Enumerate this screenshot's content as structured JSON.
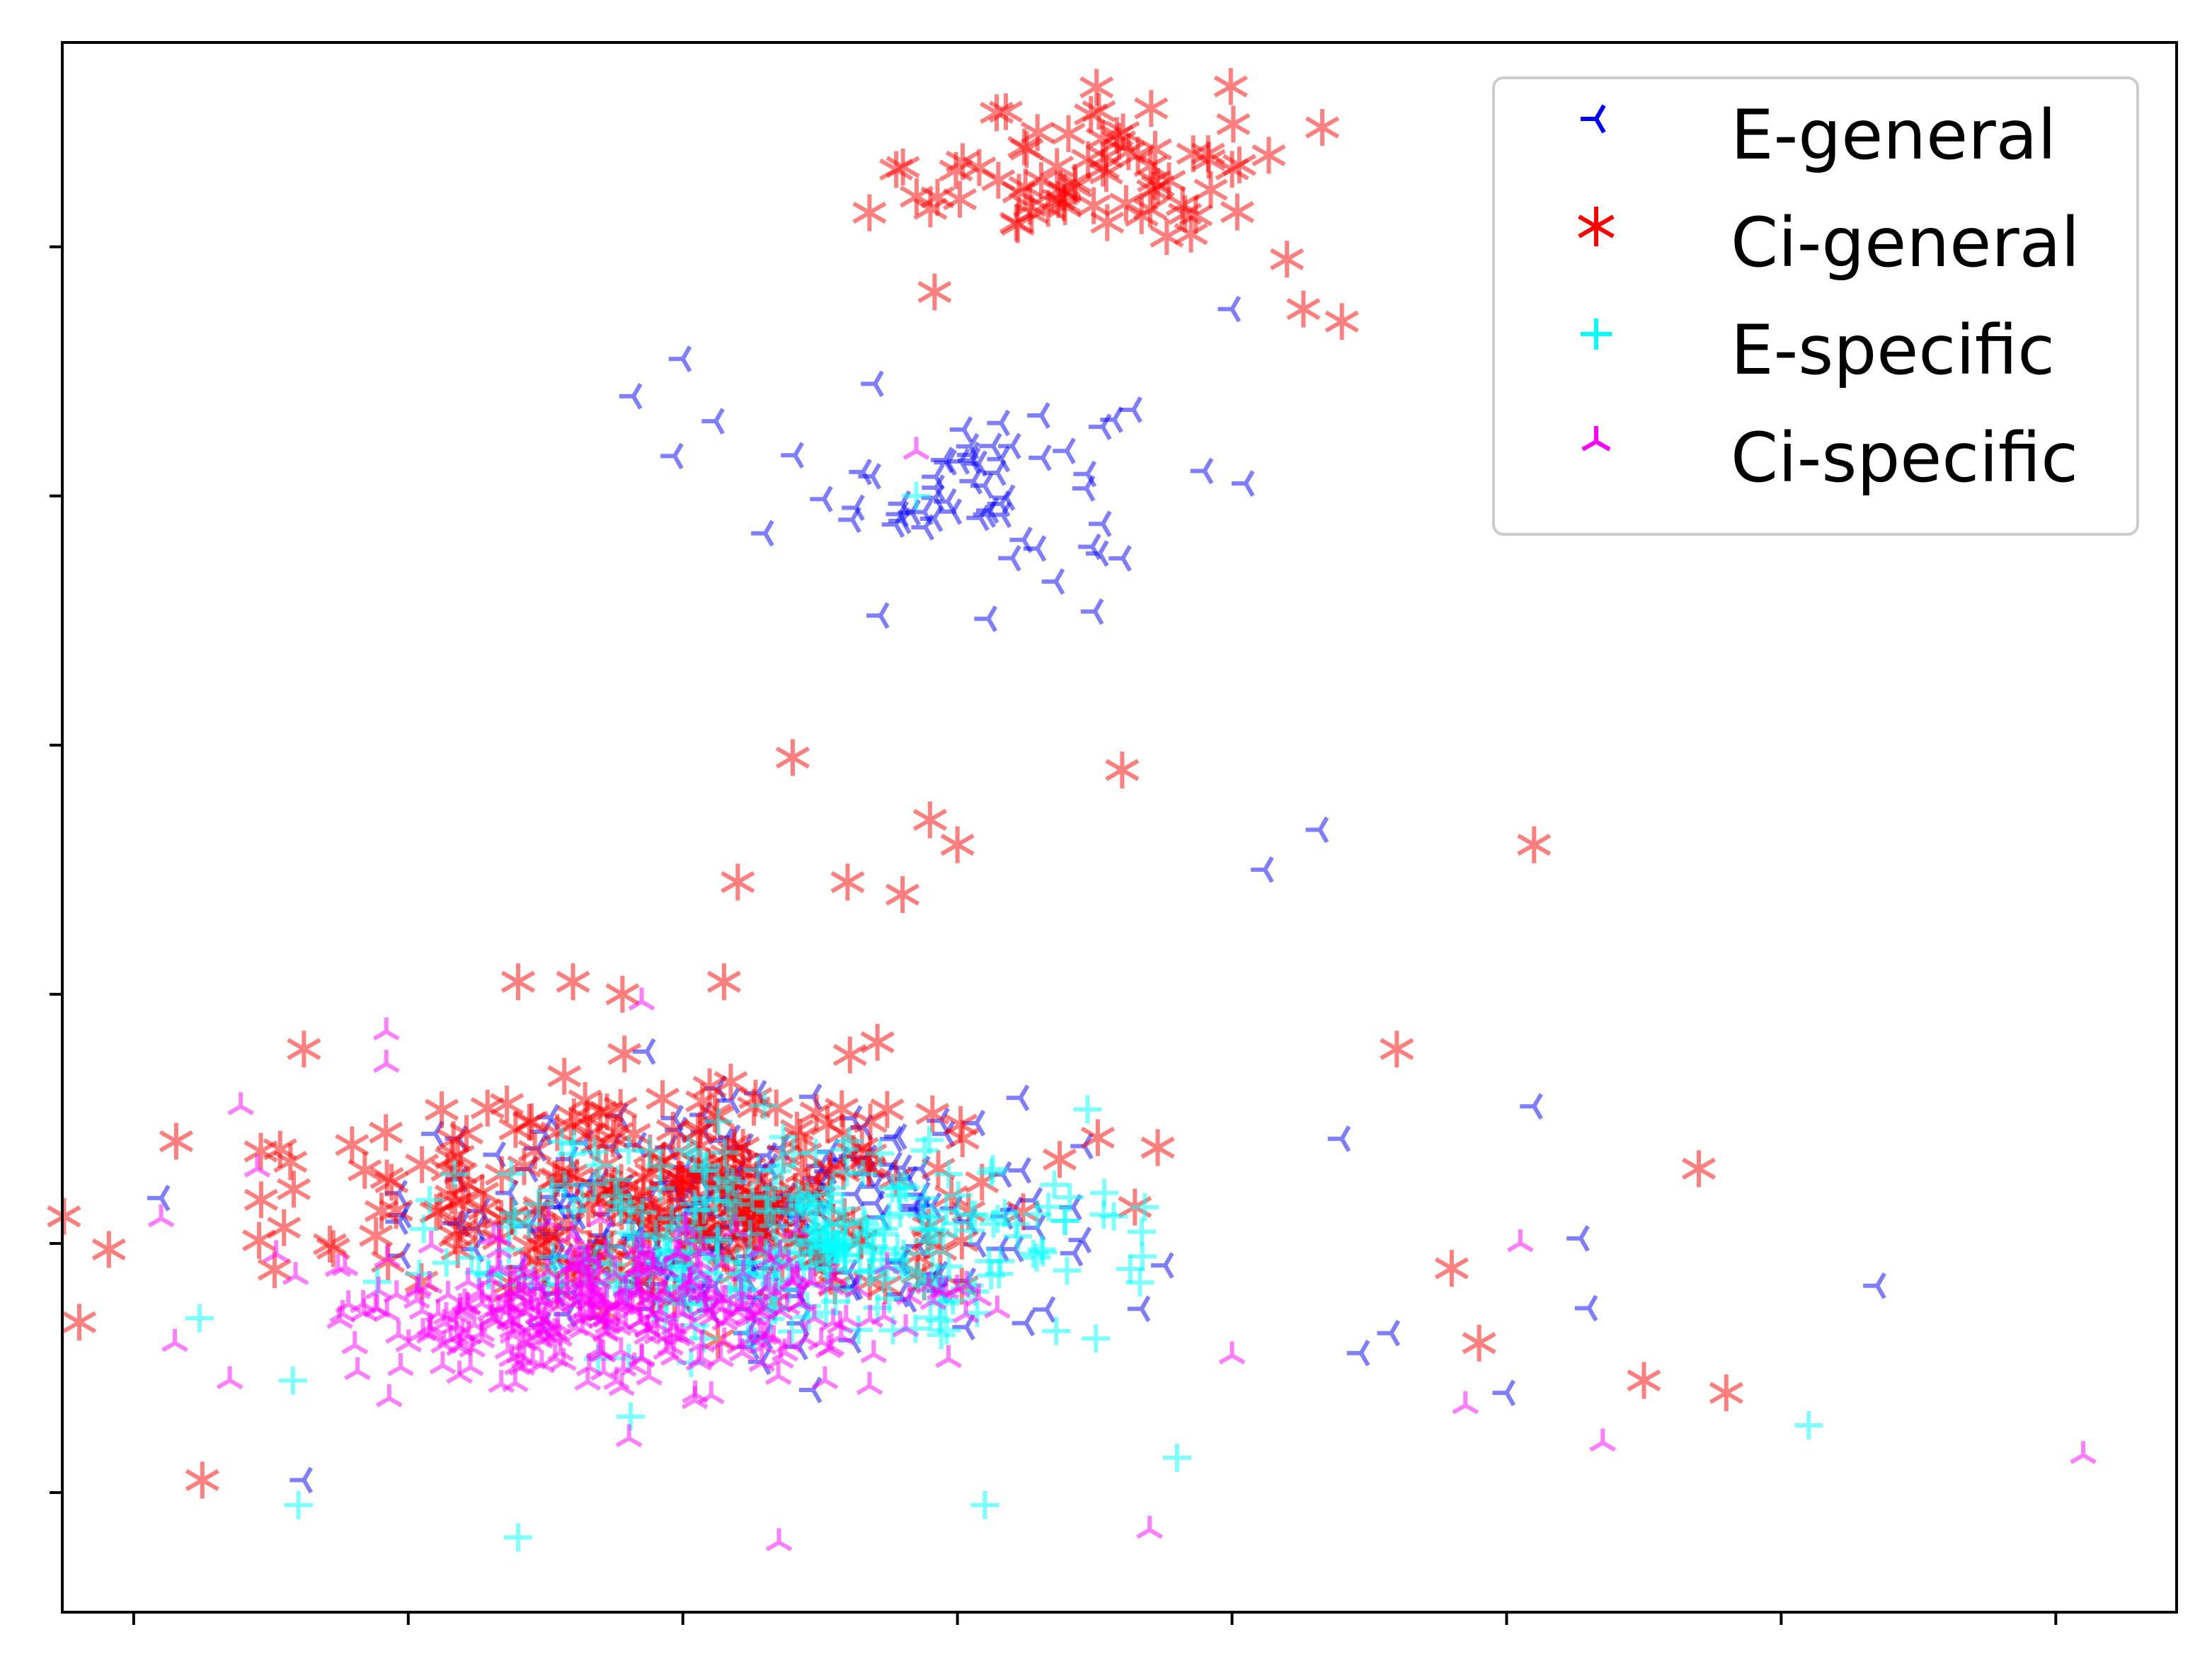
{
  "chart_data": {
    "type": "scatter",
    "title": "",
    "xlabel": "",
    "ylabel": "",
    "xlim": [
      -0.26,
      7.44
    ],
    "ylim": [
      -0.48,
      5.82
    ],
    "xticks": [
      0,
      1,
      2,
      3,
      4,
      5,
      6,
      7
    ],
    "yticks": [
      0,
      1,
      2,
      3,
      4,
      5
    ],
    "tick_labels_shown": false,
    "grid": false,
    "legend_position": "top-right",
    "series": [
      {
        "name": "E-general",
        "marker": "tri_left",
        "color": "#0000ff",
        "alpha": 0.5,
        "clusters": [
          {
            "center": [
              3.1,
              4.05
            ],
            "spread": [
              0.55,
              0.38
            ],
            "count": 55
          },
          {
            "center": [
              2.2,
              1.1
            ],
            "spread": [
              1.2,
              0.45
            ],
            "count": 220
          }
        ],
        "points": [
          [
            2.0,
            4.55
          ],
          [
            1.97,
            4.16
          ],
          [
            1.82,
            4.4
          ],
          [
            2.12,
            4.3
          ],
          [
            2.3,
            3.85
          ],
          [
            2.7,
            4.45
          ],
          [
            2.8,
            3.9
          ],
          [
            2.72,
            3.52
          ],
          [
            3.2,
            4.2
          ],
          [
            4.0,
            4.75
          ],
          [
            4.05,
            4.05
          ],
          [
            3.9,
            4.1
          ],
          [
            3.2,
            3.75
          ],
          [
            4.12,
            2.5
          ],
          [
            4.32,
            2.66
          ],
          [
            4.4,
            1.42
          ],
          [
            5.1,
            1.55
          ],
          [
            5.27,
            1.02
          ],
          [
            5.3,
            0.74
          ],
          [
            6.35,
            0.83
          ],
          [
            4.47,
            0.56
          ],
          [
            4.58,
            0.64
          ],
          [
            3.25,
            0.68
          ],
          [
            5.0,
            0.4
          ],
          [
            0.62,
            0.05
          ]
        ]
      },
      {
        "name": "Ci-general",
        "marker": "star",
        "color": "#ff0000",
        "alpha": 0.5,
        "clusters": [
          {
            "center": [
              3.5,
              5.3
            ],
            "spread": [
              0.65,
              0.32
            ],
            "count": 75
          },
          {
            "center": [
              1.9,
              1.2
            ],
            "spread": [
              1.3,
              0.45
            ],
            "count": 280
          }
        ],
        "points": [
          [
            2.4,
            2.95
          ],
          [
            3.6,
            2.9
          ],
          [
            2.9,
            2.7
          ],
          [
            3.0,
            2.6
          ],
          [
            5.1,
            2.6
          ],
          [
            2.2,
            2.45
          ],
          [
            2.6,
            2.45
          ],
          [
            2.8,
            2.4
          ],
          [
            1.4,
            2.05
          ],
          [
            1.6,
            2.05
          ],
          [
            1.78,
            2.0
          ],
          [
            2.15,
            2.05
          ],
          [
            0.62,
            1.78
          ],
          [
            4.6,
            1.78
          ],
          [
            5.7,
            1.3
          ],
          [
            4.8,
            0.9
          ],
          [
            0.25,
            0.05
          ],
          [
            4.9,
            0.6
          ],
          [
            5.5,
            0.45
          ],
          [
            5.8,
            0.4
          ],
          [
            4.4,
            4.7
          ],
          [
            4.26,
            4.75
          ],
          [
            4.2,
            4.95
          ]
        ]
      },
      {
        "name": "E-specific",
        "marker": "plus",
        "color": "#00ffff",
        "alpha": 0.5,
        "clusters": [
          {
            "center": [
              2.4,
              1.0
            ],
            "spread": [
              1.15,
              0.42
            ],
            "count": 320
          }
        ],
        "points": [
          [
            6.1,
            0.27
          ],
          [
            0.24,
            0.7
          ],
          [
            0.58,
            0.45
          ],
          [
            1.4,
            -0.18
          ],
          [
            2.85,
            4.0
          ],
          [
            3.1,
            -0.05
          ],
          [
            3.8,
            0.14
          ],
          [
            0.6,
            -0.05
          ]
        ]
      },
      {
        "name": "Ci-specific",
        "marker": "tri_down",
        "color": "#ff00ff",
        "alpha": 0.5,
        "clusters": [
          {
            "center": [
              1.75,
              0.72
            ],
            "spread": [
              1.0,
              0.3
            ],
            "count": 360
          }
        ],
        "points": [
          [
            7.1,
            0.15
          ],
          [
            0.1,
            1.1
          ],
          [
            0.39,
            1.55
          ],
          [
            0.45,
            1.3
          ],
          [
            0.15,
            0.6
          ],
          [
            1.85,
            1.97
          ],
          [
            0.92,
            1.85
          ],
          [
            0.92,
            1.72
          ],
          [
            3.7,
            -0.15
          ],
          [
            5.05,
            1.0
          ],
          [
            5.35,
            0.2
          ],
          [
            0.35,
            0.45
          ],
          [
            2.35,
            -0.2
          ],
          [
            2.85,
            4.18
          ],
          [
            4.0,
            0.55
          ],
          [
            4.85,
            0.35
          ]
        ]
      }
    ]
  },
  "legend": {
    "items": [
      "E-general",
      "Ci-general",
      "E-specific",
      "Ci-specific"
    ]
  }
}
